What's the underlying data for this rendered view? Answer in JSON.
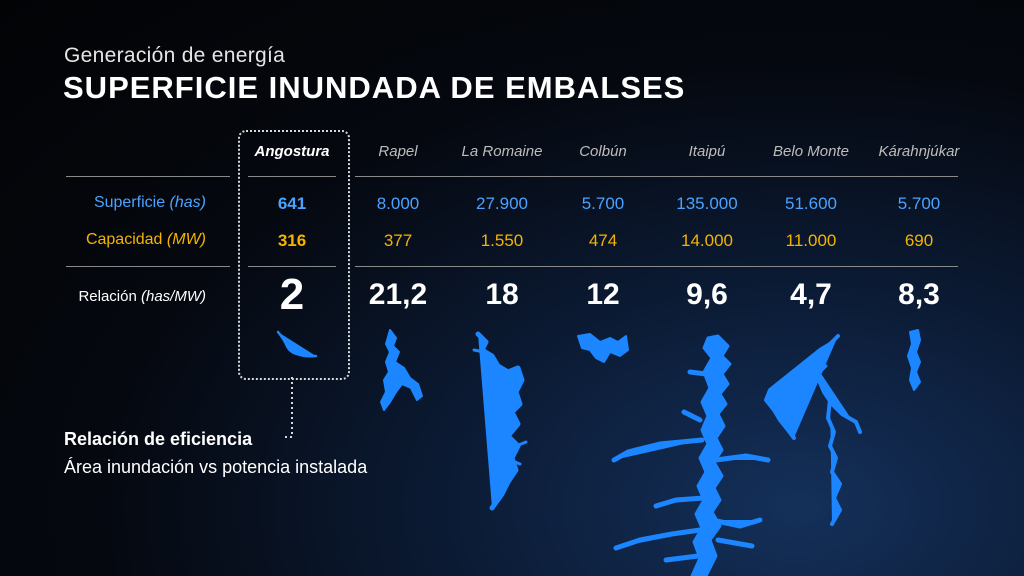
{
  "subtitle": "Generación de energía",
  "title": "SUPERFICIE INUNDADA DE EMBALSES",
  "row_labels": {
    "superficie": "Superficie",
    "superficie_unit": "(has)",
    "capacidad": "Capacidad",
    "capacidad_unit": "(MW)",
    "relacion": "Relación",
    "relacion_unit": "(has/MW)"
  },
  "reservoirs": [
    {
      "name": "Angostura",
      "superficie": "641",
      "capacidad": "316",
      "relacion": "2"
    },
    {
      "name": "Rapel",
      "superficie": "8.000",
      "capacidad": "377",
      "relacion": "21,2"
    },
    {
      "name": "La Romaine",
      "superficie": "27.900",
      "capacidad": "1.550",
      "relacion": "18"
    },
    {
      "name": "Colbún",
      "superficie": "5.700",
      "capacidad": "474",
      "relacion": "12"
    },
    {
      "name": "Itaipú",
      "superficie": "135.000",
      "capacidad": "14.000",
      "relacion": "9,6"
    },
    {
      "name": "Belo Monte",
      "superficie": "51.600",
      "capacidad": "11.000",
      "relacion": "4,7"
    },
    {
      "name": "Kárahnjúkar",
      "superficie": "5.700",
      "capacidad": "690",
      "relacion": "8,3"
    }
  ],
  "footer": {
    "heading": "Relación de eficiencia",
    "text": "Área inundación vs potencia instalada"
  },
  "colors": {
    "superficie": "#4aa3ff",
    "capacidad": "#f5b400",
    "reservoir_shape": "#1b86ff"
  }
}
